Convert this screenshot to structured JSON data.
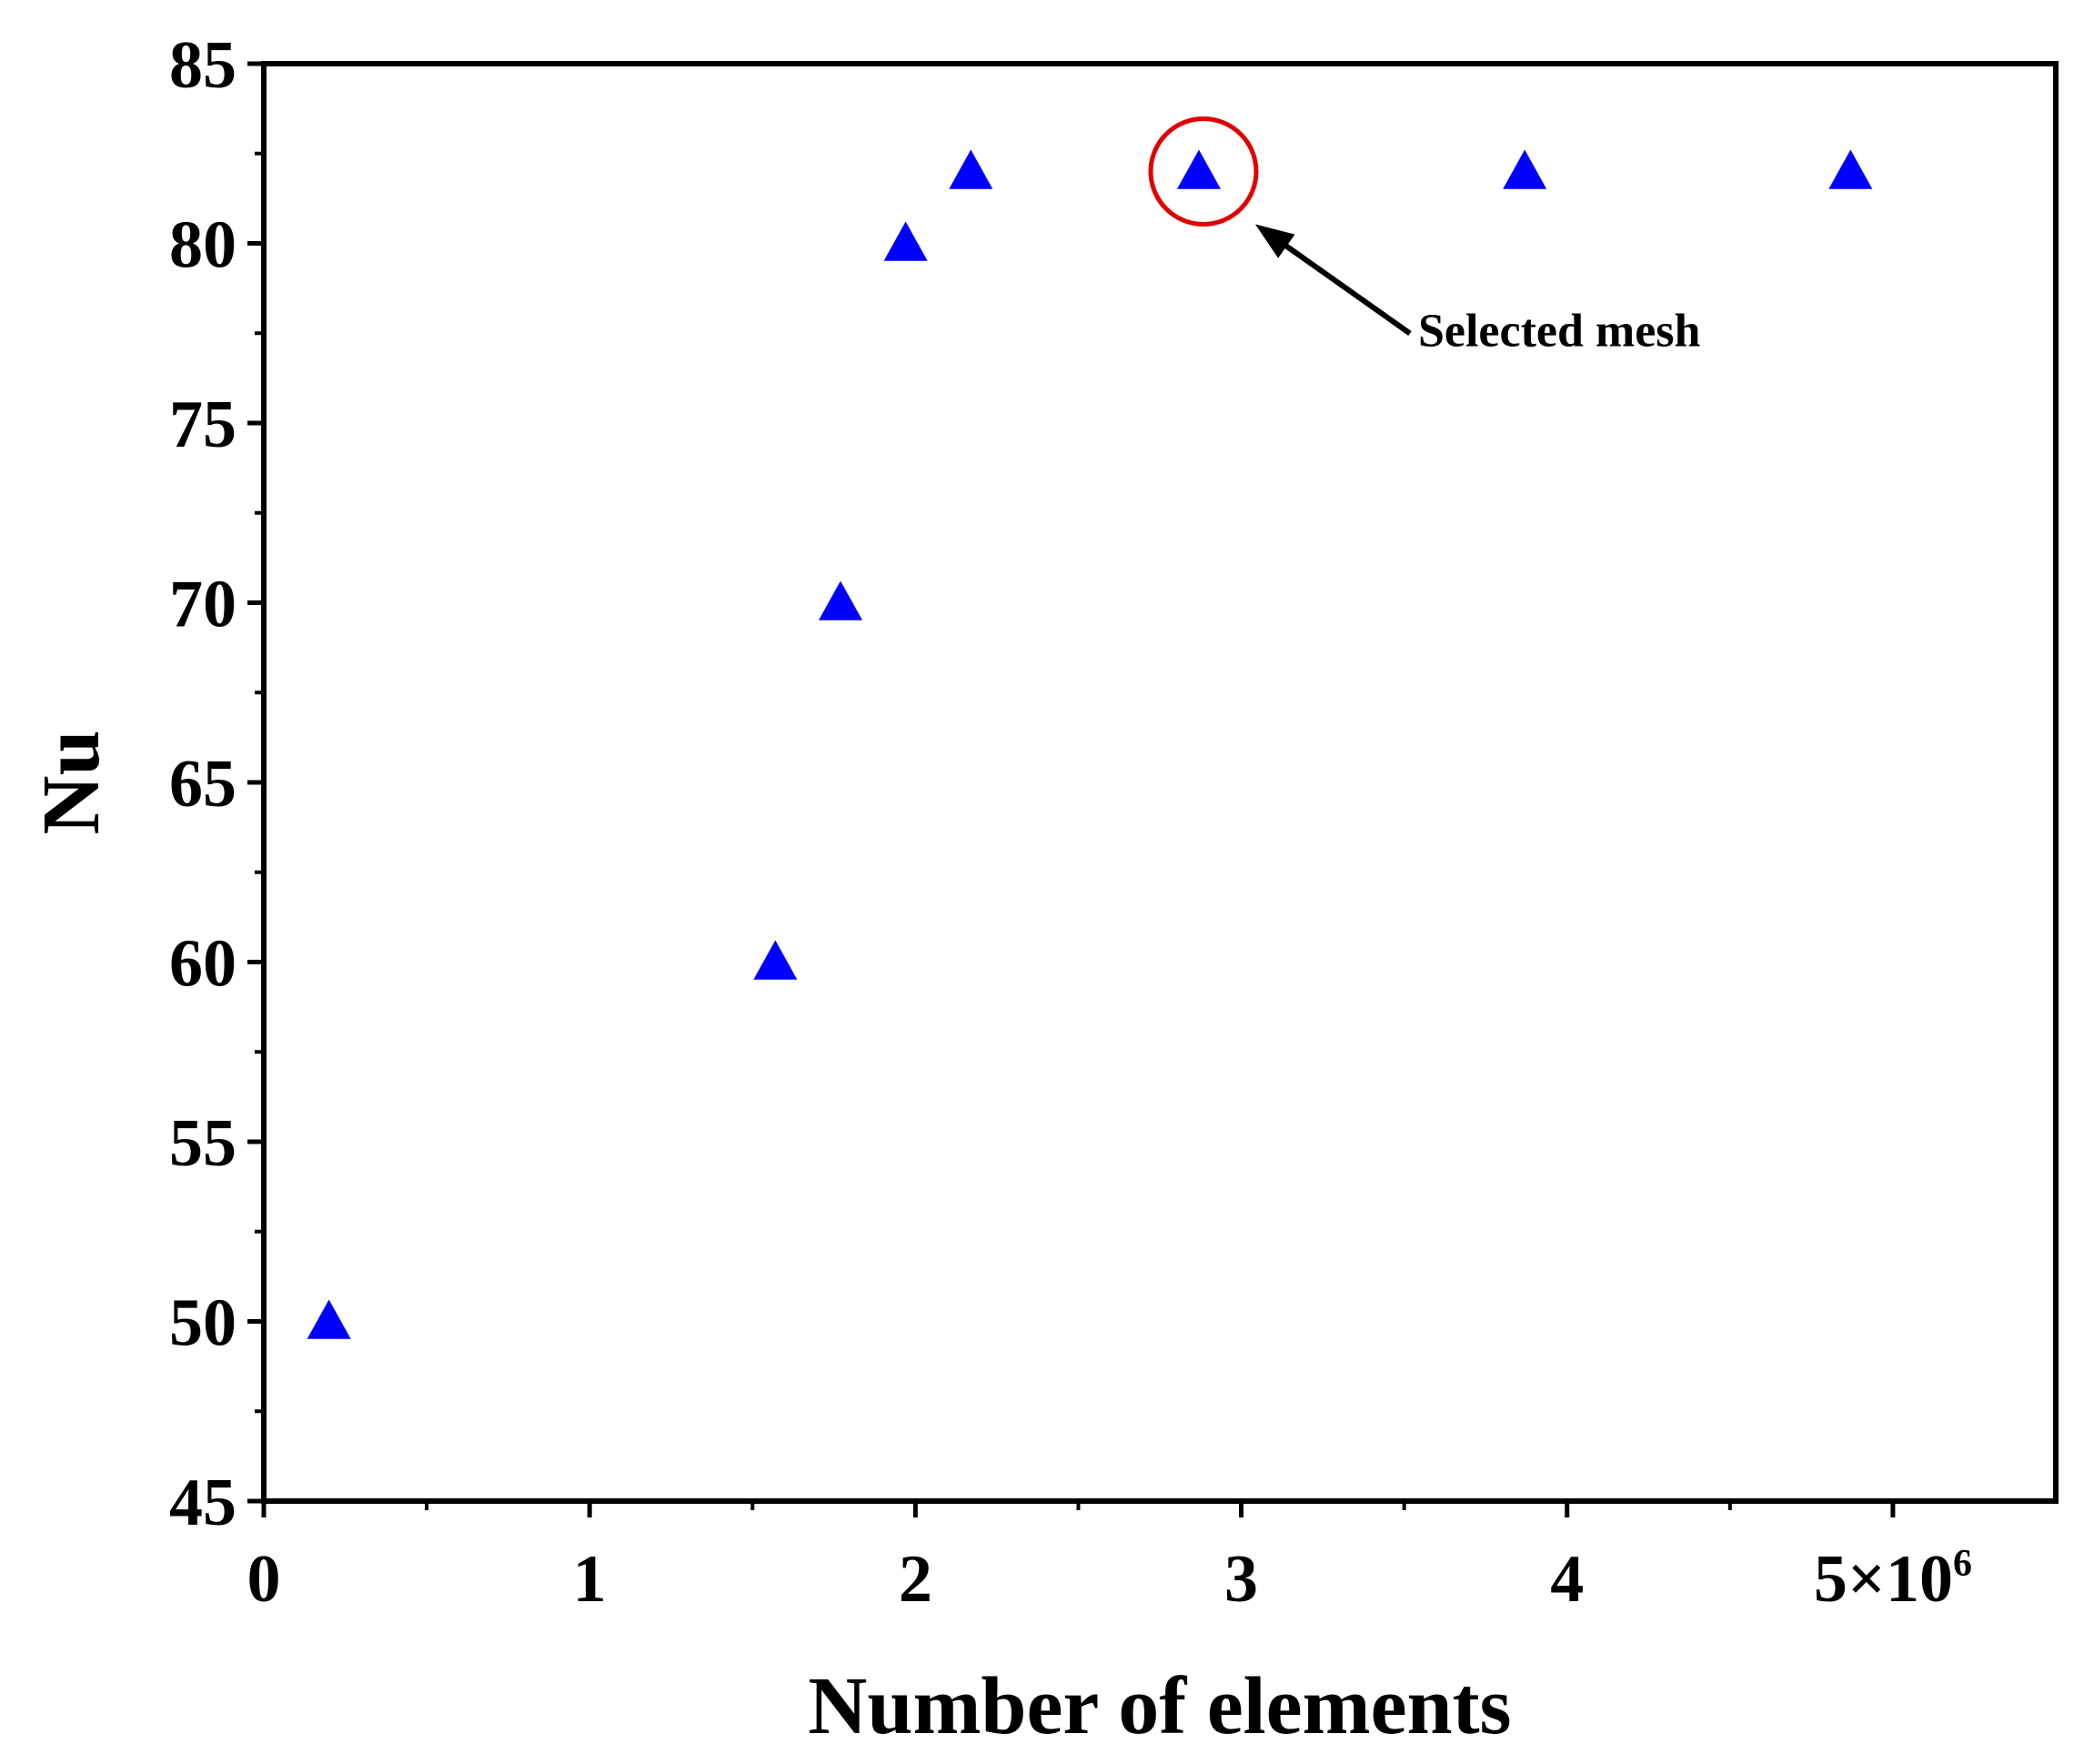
{
  "chart_data": {
    "type": "scatter",
    "title": "",
    "xlabel": "Number of elements",
    "ylabel": "Nu",
    "xlim": [
      0,
      5500000
    ],
    "ylim": [
      45,
      85
    ],
    "x_ticks": [
      0,
      1000000,
      2000000,
      3000000,
      4000000,
      5000000
    ],
    "x_tick_labels": [
      "0",
      "1",
      "2",
      "3",
      "4",
      "5×10"
    ],
    "x_tick_exponent": "6",
    "y_ticks": [
      45,
      50,
      55,
      60,
      65,
      70,
      75,
      80,
      85
    ],
    "y_tick_labels": [
      "45",
      "50",
      "55",
      "60",
      "65",
      "70",
      "75",
      "80",
      "85"
    ],
    "grid": false,
    "marker": "triangle",
    "marker_color": "#0000ff",
    "points": [
      {
        "x": 200000,
        "y": 50
      },
      {
        "x": 1570000,
        "y": 60
      },
      {
        "x": 1770000,
        "y": 70
      },
      {
        "x": 1970000,
        "y": 80
      },
      {
        "x": 2170000,
        "y": 82
      },
      {
        "x": 2870000,
        "y": 82
      },
      {
        "x": 3870000,
        "y": 82
      },
      {
        "x": 4870000,
        "y": 82
      }
    ],
    "annotation": {
      "text": "Selected mesh",
      "point_index": 5,
      "circle_color": "#e00000",
      "arrow_color": "#000000"
    }
  }
}
